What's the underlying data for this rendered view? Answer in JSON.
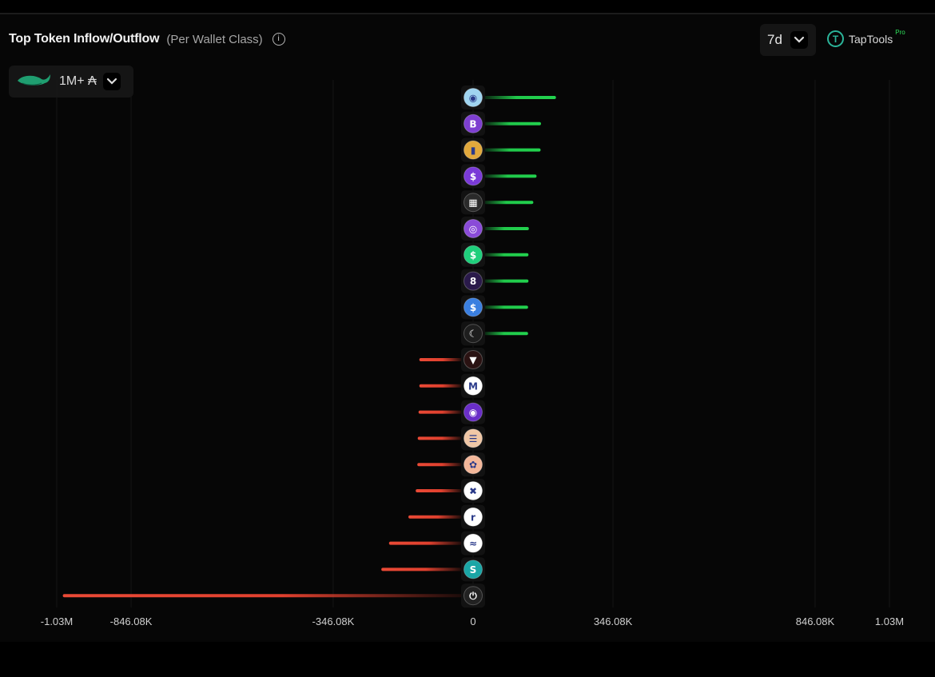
{
  "header": {
    "title": "Top Token Inflow/Outflow",
    "subtitle": "(Per Wallet Class)",
    "info_glyph": "i",
    "period_label": "7d",
    "brand_name": "TapTools",
    "brand_badge": "Pro"
  },
  "filter": {
    "label": "1M+ ₳",
    "icon": "whale-icon"
  },
  "colors": {
    "inflow": "#20c84a",
    "outflow": "#e0402e",
    "background": "#060606"
  },
  "chart_data": {
    "type": "bar",
    "orientation": "horizontal",
    "xlim": [
      -1030000,
      1030000
    ],
    "x_ticks": [
      -1030000,
      -846080,
      -346080,
      0,
      346080,
      846080,
      1030000
    ],
    "x_tick_labels": [
      "-1.03M",
      "-846.08K",
      "-346.08K",
      "0",
      "346.08K",
      "846.08K",
      "1.03M"
    ],
    "grid": true,
    "legend": "none",
    "categories": [
      {
        "icon": "snek-token-icon",
        "color": "#9fd4f0",
        "glyph": "◉"
      },
      {
        "icon": "bitcoin-token-icon",
        "color": "#7e3fd0",
        "glyph": "B"
      },
      {
        "icon": "bronze-medal-token-icon",
        "color": "#e2a93c",
        "glyph": "▮"
      },
      {
        "icon": "purple-dollar-token-icon",
        "color": "#7a3ad8",
        "glyph": "$"
      },
      {
        "icon": "pattern-token-icon",
        "color": "#2a2a2a",
        "glyph": "▦"
      },
      {
        "icon": "purple-ring-token-icon",
        "color": "#8a4bd8",
        "glyph": "◎"
      },
      {
        "icon": "green-dollar-token-icon",
        "color": "#1fcf7c",
        "glyph": "$"
      },
      {
        "icon": "eight-token-icon",
        "color": "#2a1a4a",
        "glyph": "8"
      },
      {
        "icon": "blue-dollar-token-icon",
        "color": "#3a7fe0",
        "glyph": "$"
      },
      {
        "icon": "crescent-token-icon",
        "color": "#1e1e1e",
        "glyph": "☾"
      },
      {
        "icon": "red-shield-token-icon",
        "color": "#2a1212",
        "glyph": "▼"
      },
      {
        "icon": "m-token-icon",
        "color": "#ffffff",
        "glyph": "M"
      },
      {
        "icon": "purple-eye-token-icon",
        "color": "#6a2ec8",
        "glyph": "◉"
      },
      {
        "icon": "burger-token-icon",
        "color": "#f0c7a6",
        "glyph": "☰"
      },
      {
        "icon": "cookie-token-icon",
        "color": "#f3b79a",
        "glyph": "✿"
      },
      {
        "icon": "grid-token-icon",
        "color": "#ffffff",
        "glyph": "✖"
      },
      {
        "icon": "r-token-icon",
        "color": "#ffffff",
        "glyph": "r"
      },
      {
        "icon": "wave-token-icon",
        "color": "#ffffff",
        "glyph": "≈"
      },
      {
        "icon": "teal-s-token-icon",
        "color": "#1aa6a6",
        "glyph": "S"
      },
      {
        "icon": "power-token-icon",
        "color": "#222222",
        "glyph": "⏻"
      }
    ],
    "values": [
      205000,
      168000,
      167000,
      157000,
      149000,
      138000,
      137000,
      137000,
      136000,
      136000,
      -133000,
      -133000,
      -135000,
      -137000,
      -138000,
      -142000,
      -160000,
      -208000,
      -227000,
      -1015000
    ]
  }
}
